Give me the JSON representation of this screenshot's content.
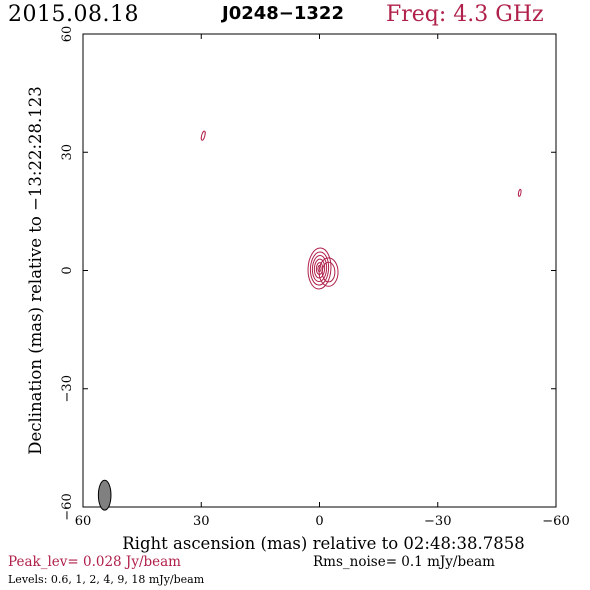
{
  "header": {
    "date": "2015.08.18",
    "source": "J0248−1322",
    "frequency": "Freq: 4.3 GHz"
  },
  "footer": {
    "peak": "Peak_lev=  0.028 Jy/beam",
    "rms": "Rms_noise=  0.1 mJy/beam",
    "levels": "Levels: 0.6,   1,   2,   4,   9,   18 mJy/beam"
  },
  "colors": {
    "accent": "#b0204a",
    "beam_fill": "#808080"
  },
  "chart_data": {
    "type": "contour",
    "xlabel": "Right ascension (mas) relative to 02:48:38.7858",
    "ylabel": "Declination (mas) relative to −13:22:28.123",
    "xlim": [
      60,
      -60
    ],
    "ylim": [
      -60,
      60
    ],
    "x_ticks": [
      60,
      30,
      0,
      -30,
      -60
    ],
    "y_ticks": [
      60,
      30,
      0,
      -30,
      -60
    ],
    "x_tick_labels": [
      "60",
      "30",
      "0",
      "−30",
      "−60"
    ],
    "y_tick_labels": [
      "60",
      "30",
      "0",
      "−30",
      "−60"
    ],
    "contour_levels_mJy": [
      0.6,
      1,
      2,
      4,
      9,
      18
    ],
    "components": [
      {
        "x": 0,
        "y": 0.5,
        "contours": [
          {
            "a": 2.9,
            "b": 5.2,
            "angle": 3
          },
          {
            "a": 2.3,
            "b": 4.2,
            "angle": 3
          },
          {
            "a": 1.8,
            "b": 3.3,
            "angle": 3
          },
          {
            "a": 1.3,
            "b": 2.4,
            "angle": 3
          },
          {
            "a": 0.8,
            "b": 1.5,
            "angle": 3
          },
          {
            "a": 0.4,
            "b": 0.8,
            "angle": 3
          }
        ]
      },
      {
        "x": -2.3,
        "y": -0.4,
        "contours": [
          {
            "a": 2.4,
            "b": 3.6,
            "angle": 0
          },
          {
            "a": 1.6,
            "b": 2.5,
            "angle": 0
          }
        ]
      },
      {
        "x": 29.5,
        "y": 34.2,
        "contours": [
          {
            "a": 0.4,
            "b": 1.2,
            "angle": 15
          }
        ]
      },
      {
        "x": -50.8,
        "y": 19.7,
        "contours": [
          {
            "a": 0.3,
            "b": 0.9,
            "angle": 10
          }
        ]
      }
    ],
    "beam": {
      "x": 54.5,
      "y": -57,
      "a": 1.0,
      "b": 2.0,
      "angle": 0
    }
  }
}
